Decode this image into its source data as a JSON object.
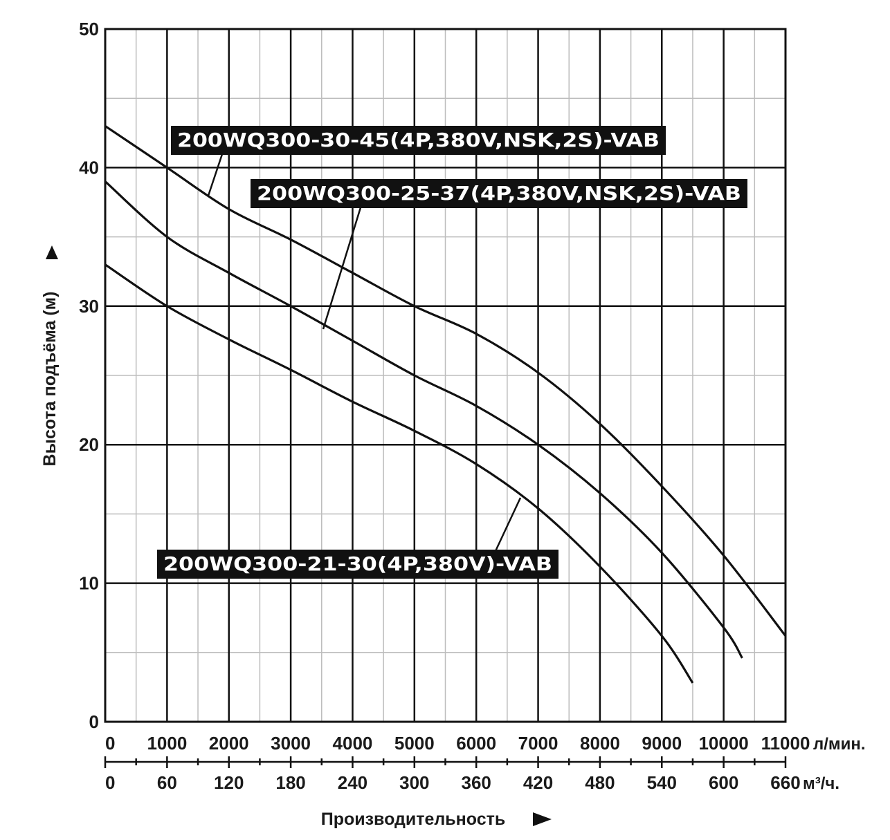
{
  "chart_data": {
    "type": "line",
    "title": "",
    "xlabel": "Производительность",
    "ylabel": "Высота подъёма (м)",
    "xlim": [
      0,
      11000
    ],
    "ylim": [
      0,
      50
    ],
    "grid": true,
    "x_unit_primary": "л/мин.",
    "x_unit_secondary": "м³/ч.",
    "x_ticks_primary": [
      "0",
      "1000",
      "2000",
      "3000",
      "4000",
      "5000",
      "6000",
      "7000",
      "8000",
      "9000",
      "10000",
      "11000"
    ],
    "x_ticks_secondary": [
      "0",
      "60",
      "120",
      "180",
      "240",
      "300",
      "360",
      "420",
      "480",
      "540",
      "600",
      "660"
    ],
    "y_ticks": [
      "0",
      "10",
      "20",
      "30",
      "40",
      "50"
    ],
    "series": [
      {
        "name": "200WQ300-30-45(4P,380V,NSK,2S)-VAB",
        "x": [
          0,
          1000,
          2000,
          3000,
          4000,
          5000,
          6000,
          7000,
          8000,
          9000,
          10000,
          11000
        ],
        "y": [
          43,
          40,
          37,
          34.8,
          32.4,
          30,
          28,
          25.2,
          21.5,
          17,
          12,
          6.2
        ]
      },
      {
        "name": "200WQ300-25-37(4P,380V,NSK,2S)-VAB",
        "x": [
          0,
          1000,
          2000,
          3000,
          4000,
          5000,
          6000,
          7000,
          8000,
          9000,
          10000,
          10300
        ],
        "y": [
          39,
          35,
          32.4,
          30,
          27.5,
          25,
          22.8,
          20,
          16.5,
          12.2,
          6.8,
          4.6
        ]
      },
      {
        "name": "200WQ300-21-30(4P,380V)-VAB",
        "x": [
          0,
          1000,
          2000,
          3000,
          4000,
          5000,
          6000,
          7000,
          8000,
          9000,
          9500
        ],
        "y": [
          33,
          30,
          27.6,
          25.4,
          23.1,
          21,
          18.6,
          15.4,
          11.2,
          6.2,
          2.8
        ]
      }
    ]
  }
}
